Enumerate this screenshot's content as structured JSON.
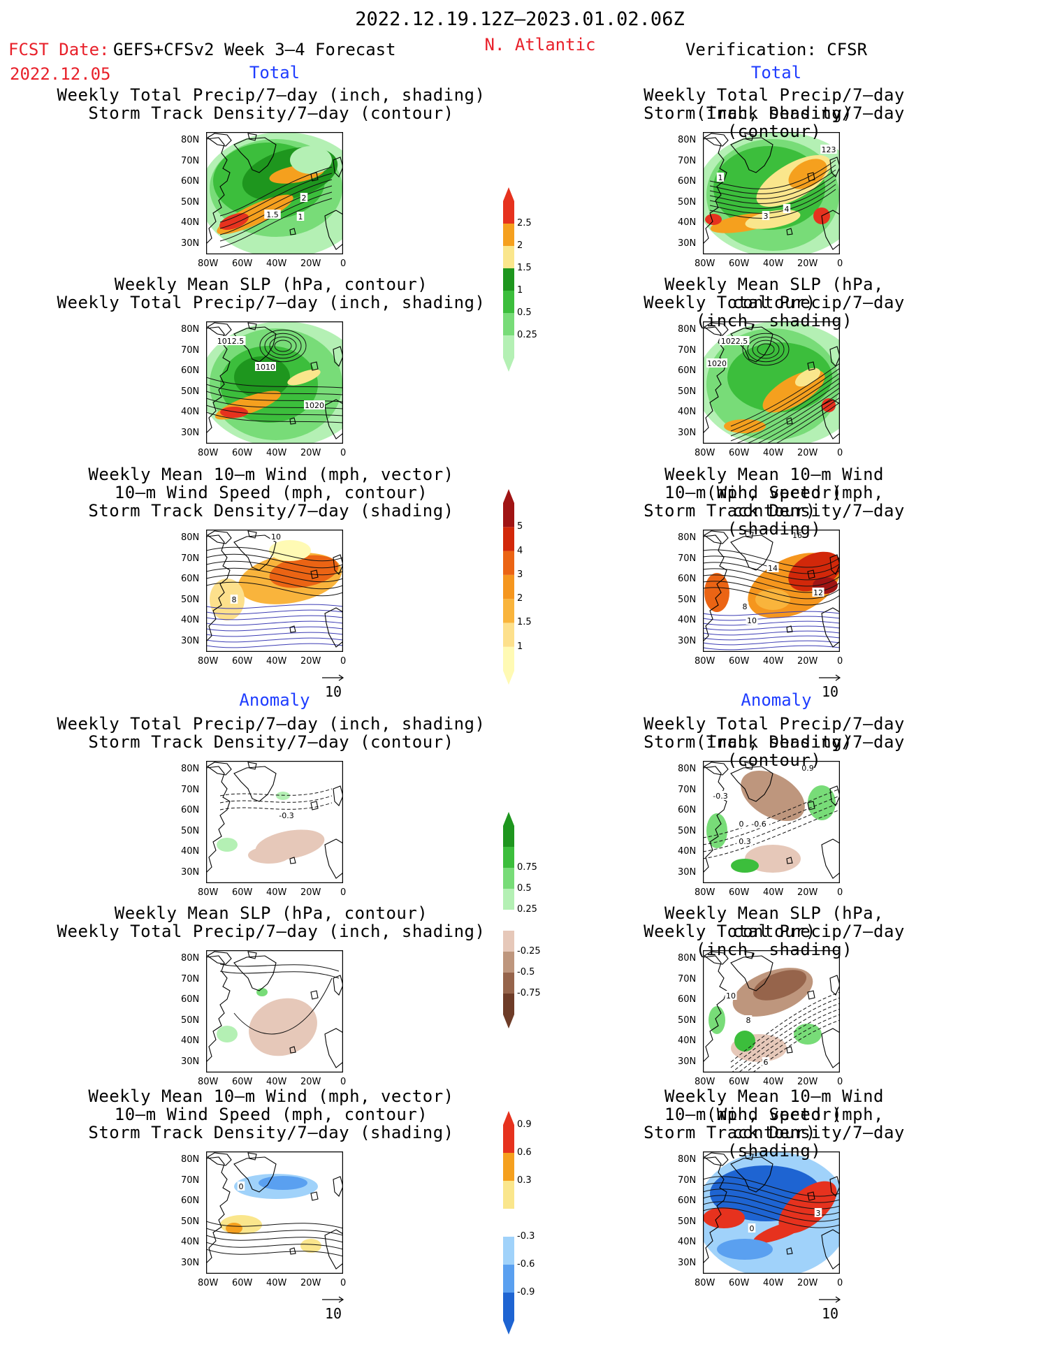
{
  "header": {
    "date_range": "2022.12.19.12Z–2023.01.02.06Z",
    "fcst_label": "FCST Date:",
    "forecast_title": "GEFS+CFSv2 Week 3–4 Forecast",
    "fcst_date": "2022.12.05",
    "region": "N. Atlantic",
    "verification": "Verification: CFSR"
  },
  "sections": {
    "total_left": "Total",
    "total_right": "Total",
    "anomaly_left": "Anomaly",
    "anomaly_right": "Anomaly"
  },
  "titles": {
    "precip_storm": [
      "Weekly Total Precip/7–day (inch, shading)",
      "Storm Track Density/7–day (contour)"
    ],
    "slp_precip": [
      "Weekly Mean SLP (hPa, contour)",
      "Weekly Total Precip/7–day (inch, shading)"
    ],
    "wind_storm": [
      "Weekly Mean 10–m Wind (mph, vector)",
      "10–m Wind Speed (mph, contour)",
      "Storm Track Density/7–day (shading)"
    ]
  },
  "axes": {
    "lat_ticks": [
      "80N",
      "70N",
      "60N",
      "50N",
      "40N",
      "30N"
    ],
    "lon_ticks": [
      "80W",
      "60W",
      "40W",
      "20W",
      "0"
    ],
    "vector_ref": "10"
  },
  "colorbars": {
    "precip_total": {
      "labels": [
        "0.25",
        "0.5",
        "1",
        "1.5",
        "2",
        "2.5"
      ],
      "colors": [
        "#b4f0b4",
        "#78dc78",
        "#3cbe3c",
        "#1e961e",
        "#fae68c",
        "#f5a01e",
        "#e6321e"
      ]
    },
    "storm_total": {
      "labels": [
        "1",
        "1.5",
        "2",
        "3",
        "4",
        "5"
      ],
      "colors": [
        "#fffab4",
        "#fde08c",
        "#f9b43c",
        "#f5961e",
        "#eb6414",
        "#d2280a",
        "#a01414"
      ]
    },
    "precip_anom": {
      "labels": [
        "-0.75",
        "-0.5",
        "-0.25",
        "0.25",
        "0.5",
        "0.75"
      ],
      "colors": [
        "#6e3c28",
        "#96644b",
        "#be967d",
        "#e6c8b9",
        "#ffffff",
        "#b4f0b4",
        "#78dc78",
        "#3cbe3c",
        "#1e961e"
      ]
    },
    "storm_anom": {
      "labels": [
        "-0.9",
        "-0.6",
        "-0.3",
        "0.3",
        "0.6",
        "0.9"
      ],
      "colors": [
        "#1e64d2",
        "#5aa0f0",
        "#a0d2fa",
        "#ffffff",
        "#fae68c",
        "#f5a01e",
        "#e6321e"
      ]
    }
  },
  "contour_labels": {
    "p1_left": [
      "1.5",
      "2",
      "1"
    ],
    "p1_right": [
      "1",
      "3",
      "4",
      "123"
    ],
    "p2_left": [
      "1012.5",
      "1010",
      "1020"
    ],
    "p2_right": [
      "1022.5",
      "1020"
    ],
    "p3_left": [
      "10",
      "8"
    ],
    "p3_right": [
      "16",
      "14",
      "12",
      "8",
      "10"
    ],
    "p4_left": [
      "-0.3"
    ],
    "p4_right": [
      "-0.3",
      "0",
      "-0.6",
      "0.3",
      "0.9"
    ],
    "p5_right": [
      "10",
      "8",
      "6"
    ],
    "p6_left": [
      "0"
    ],
    "p6_right": [
      "3",
      "0"
    ]
  },
  "chart_data": [
    {
      "type": "heatmap",
      "panel": "total-left-1",
      "title": "Weekly Total Precip/7-day (inch, shading) / Storm Track Density/7-day (contour)",
      "xlim": [
        "80W",
        "0"
      ],
      "ylim": [
        "25N",
        "85N"
      ]
    },
    {
      "type": "heatmap",
      "panel": "total-right-1",
      "title": "Weekly Total Precip/7-day (inch, shading) / Storm Track Density/7-day (contour)",
      "xlim": [
        "80W",
        "0"
      ],
      "ylim": [
        "25N",
        "85N"
      ]
    },
    {
      "type": "heatmap",
      "panel": "total-left-2",
      "title": "Weekly Mean SLP (hPa, contour) / Weekly Total Precip/7-day (inch, shading)"
    },
    {
      "type": "heatmap",
      "panel": "total-right-2",
      "title": "Weekly Mean SLP (hPa, contour) / Weekly Total Precip/7-day (inch, shading)"
    },
    {
      "type": "heatmap",
      "panel": "total-left-3",
      "title": "Weekly Mean 10-m Wind / 10-m Wind Speed / Storm Track Density"
    },
    {
      "type": "heatmap",
      "panel": "total-right-3",
      "title": "Weekly Mean 10-m Wind / 10-m Wind Speed / Storm Track Density"
    },
    {
      "type": "heatmap",
      "panel": "anom-left-1",
      "title": "Anomaly: Precip / Storm Track"
    },
    {
      "type": "heatmap",
      "panel": "anom-right-1",
      "title": "Anomaly: Precip / Storm Track"
    },
    {
      "type": "heatmap",
      "panel": "anom-left-2",
      "title": "Anomaly: SLP / Precip"
    },
    {
      "type": "heatmap",
      "panel": "anom-right-2",
      "title": "Anomaly: SLP / Precip"
    },
    {
      "type": "heatmap",
      "panel": "anom-left-3",
      "title": "Anomaly: Wind / Storm Track"
    },
    {
      "type": "heatmap",
      "panel": "anom-right-3",
      "title": "Anomaly: Wind / Storm Track"
    }
  ]
}
